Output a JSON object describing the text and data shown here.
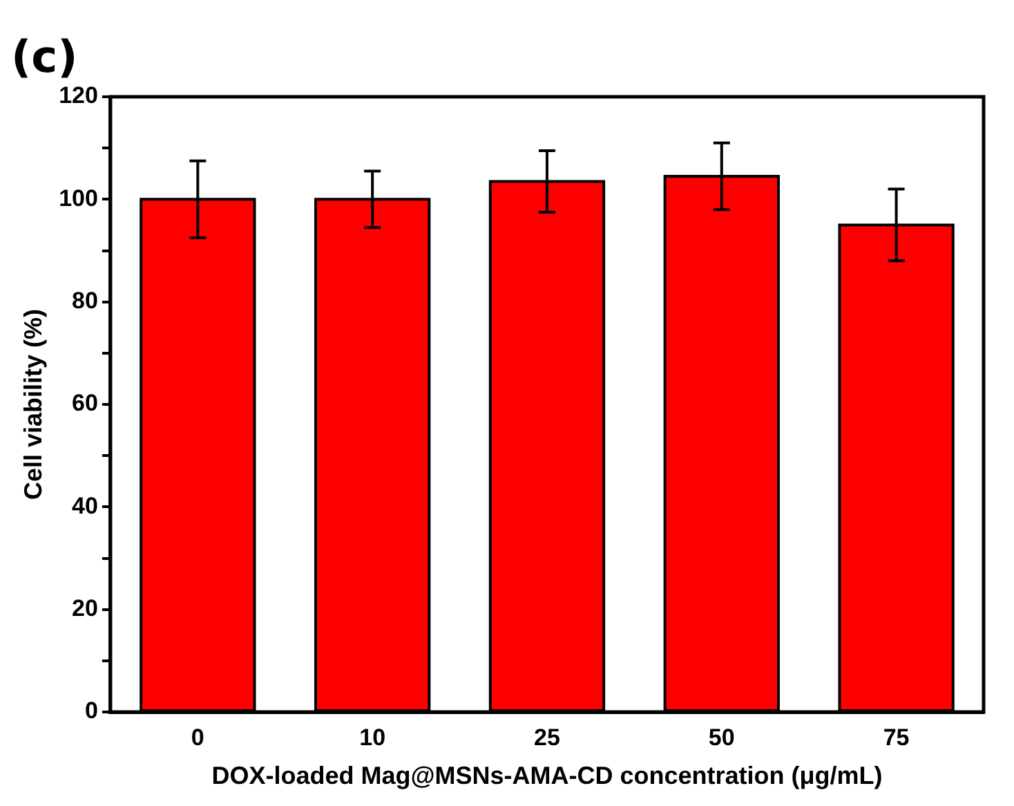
{
  "chart_data": {
    "type": "bar",
    "annotations": [
      "(c)"
    ],
    "xlabel": "DOX-loaded Mag@MSNs-AMA-CD concentration (μg/mL)",
    "ylabel": "Cell viability (%)",
    "categories": [
      "0",
      "10",
      "25",
      "50",
      "75"
    ],
    "values": [
      100,
      100,
      103.5,
      104.5,
      95
    ],
    "errors": [
      7.5,
      5.5,
      6,
      6.5,
      7
    ],
    "color": "#ff0000",
    "ylim": [
      0,
      120
    ],
    "yticks": [
      0,
      {
        "value": 10,
        "label": null
      },
      20,
      {
        "value": 30,
        "label": null
      },
      40,
      {
        "value": 50,
        "label": null
      },
      60,
      {
        "value": 70,
        "label": null
      },
      80,
      {
        "value": 90,
        "label": null
      },
      100,
      {
        "value": 110,
        "label": null
      },
      120
    ],
    "grid": false,
    "legend": false
  }
}
